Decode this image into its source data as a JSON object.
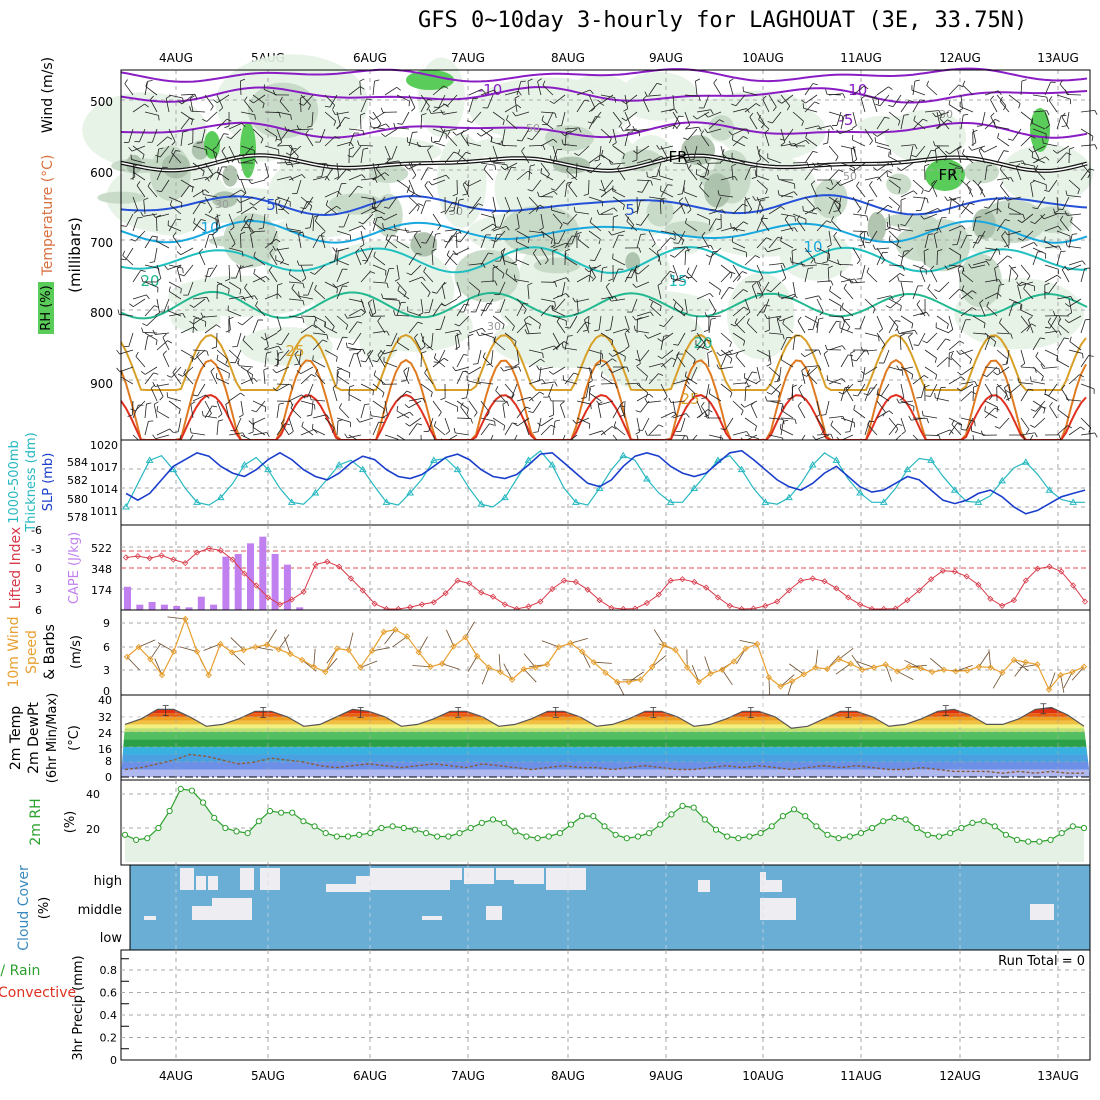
{
  "title": "GFS 0~10day 3-hourly for LAGHOUAT (3E, 33.75N)",
  "date_labels": [
    "4AUG",
    "5AUG",
    "6AUG",
    "7AUG",
    "8AUG",
    "9AUG",
    "10AUG",
    "11AUG",
    "12AUG",
    "13AUG"
  ],
  "colors": {
    "minus10": "#8a1cc4",
    "minus5": "#8a1cc4",
    "freezing": "#111111",
    "plus5": "#2550d8",
    "plus10": "#18a8e0",
    "plus15": "#20c0c0",
    "plus20": "#22b890",
    "plus25": "#d8a028",
    "plus30": "#e07a20",
    "plus35": "#e03020",
    "rh_light": "#e6f2e6",
    "rh_mid": "#c4d8c4",
    "rh_dark": "#a8bfa8",
    "rh_green": "#5acc5a",
    "thickness": "#26b8c0",
    "slp": "#1a3ecc",
    "lifted": "#d83a4a",
    "cape": "#c080f0",
    "wind_speed": "#e8a030",
    "barbs": "#6a4a2a",
    "rh2m": "#2ea02e",
    "cloud": "#6aaed6"
  },
  "panels": {
    "upper": {
      "label_rh": "RH (%)",
      "label_temp": "Temperature (°C)",
      "label_wind": "Wind (m/s)",
      "ylabel": "(millibars)",
      "yticks": [
        "500",
        "600",
        "700",
        "800",
        "900"
      ],
      "contour_labels": [
        "-10",
        "-10",
        "-5",
        "FR",
        "FR",
        "5",
        "5",
        "10",
        "10",
        "15",
        "20",
        "20",
        "25",
        "25",
        "30",
        "30",
        "30",
        "50",
        "50",
        "30"
      ]
    },
    "thick_slp": {
      "label_a": "1000-500mb",
      "label_b": "Thickness (dm)",
      "label_c": "SLP (mb)",
      "yticks_left": [
        "584",
        "582",
        "580",
        "578"
      ],
      "yticks_right": [
        "1020",
        "1017",
        "1014",
        "1011"
      ]
    },
    "cape_li": {
      "label_a": "Lifted Index",
      "label_b": "CAPE (J/kg)",
      "yticks_left": [
        "-6",
        "-3",
        "0",
        "3",
        "6"
      ],
      "yticks_right": [
        "522",
        "348",
        "174"
      ]
    },
    "wind10": {
      "label_a": "10m Wind",
      "label_b": "Speed",
      "label_c": "& Barbs",
      "unit": "(m/s)",
      "yticks": [
        "9",
        "6",
        "3",
        "0"
      ]
    },
    "temp2m": {
      "label_a": "2m Temp",
      "label_b": "2m DewPt",
      "label_c": "(6hr Min/Max)",
      "unit": "(°C)",
      "yticks": [
        "40",
        "32",
        "24",
        "16",
        "8",
        "0"
      ]
    },
    "rh2m": {
      "label": "2m RH",
      "unit": "(%)",
      "yticks": [
        "40",
        "20"
      ]
    },
    "cloud": {
      "label": "Cloud Cover",
      "unit": "(%)",
      "levels": [
        "high",
        "middle",
        "low"
      ]
    },
    "precip": {
      "label_a": "tal / Rain",
      "label_b": "Convective",
      "label_c": "3hr Precip (mm)",
      "yticks": [
        "0.8",
        "0.6",
        "0.4",
        "0.2",
        "0"
      ],
      "run_total": "Run Total = 0"
    }
  },
  "chart_data": {
    "type": "line",
    "x_label_dates": [
      "4AUG",
      "5AUG",
      "6AUG",
      "7AUG",
      "8AUG",
      "9AUG",
      "10AUG",
      "11AUG",
      "12AUG",
      "13AUG"
    ],
    "thickness_dm": [
      578,
      580.5,
      583,
      583.5,
      582,
      580,
      578.5,
      578.2,
      579,
      580.5,
      582.5,
      583.3,
      582,
      580,
      578.5,
      578.3,
      579.5,
      581,
      582.5,
      583,
      582,
      580.2,
      578.5,
      578.2,
      579.5,
      581,
      583,
      583.2,
      582,
      580,
      578.3,
      578,
      579,
      581,
      583,
      584,
      582.5,
      580,
      578.5,
      578.2,
      580,
      582,
      583.5,
      583,
      581,
      579.5,
      578.5,
      578.5,
      580,
      581.5,
      583,
      583.5,
      582,
      580,
      578.5,
      578.3,
      579,
      580.5,
      582.5,
      583.8,
      583,
      581,
      579.5,
      578.5,
      578.5,
      580,
      582,
      583.2,
      583,
      581.3,
      579.8,
      578.6,
      578.5,
      579.2,
      580.8,
      582.2,
      582.8,
      581.5,
      579.8,
      578.8,
      578.5,
      578.5
    ],
    "slp_mb": [
      1013,
      1012,
      1013,
      1015,
      1017,
      1018,
      1019,
      1018.5,
      1017,
      1016,
      1015.5,
      1016.5,
      1018,
      1019,
      1018,
      1016.5,
      1015.5,
      1015,
      1016,
      1017.5,
      1018.5,
      1018,
      1016.5,
      1015.5,
      1015.2,
      1015.8,
      1017,
      1018.3,
      1018.8,
      1018,
      1016.5,
      1015.5,
      1015.2,
      1015.8,
      1017.2,
      1018.8,
      1019,
      1017.5,
      1016,
      1014.5,
      1014,
      1015,
      1017,
      1018.5,
      1019,
      1018.5,
      1017,
      1016,
      1015.5,
      1016,
      1017.5,
      1019,
      1019.3,
      1018,
      1016.5,
      1015,
      1014,
      1013.5,
      1014.5,
      1016,
      1017,
      1015.5,
      1014,
      1013.2,
      1013.5,
      1014.5,
      1015.5,
      1015,
      1013.5,
      1012,
      1011.5,
      1012,
      1013,
      1013.5,
      1012.5,
      1011,
      1010,
      1010.5,
      1011.5,
      1012.5,
      1013,
      1013.5
    ],
    "lifted_index": [
      -1.5,
      -1.7,
      -1.4,
      -1.8,
      -1.2,
      -0.7,
      -2.2,
      -2.8,
      -2.5,
      -1.2,
      0.8,
      2.5,
      4.2,
      5.2,
      4.5,
      3.4,
      -0.5,
      -0.9,
      -0.2,
      1.5,
      3.2,
      5.1,
      6.2,
      6.0,
      5.6,
      5.2,
      4.9,
      3.6,
      1.8,
      2.2,
      3.5,
      4.1,
      5.2,
      6.0,
      5.5,
      4.8,
      3.0,
      1.8,
      2.0,
      3.1,
      4.6,
      5.7,
      6.1,
      5.8,
      5.0,
      3.8,
      1.8,
      1.6,
      2.0,
      2.8,
      4.2,
      5.4,
      6.0,
      5.8,
      5.4,
      4.8,
      3.2,
      1.8,
      1.5,
      1.9,
      2.9,
      4.2,
      5.2,
      5.9,
      6.2,
      5.8,
      4.6,
      3.2,
      1.6,
      0.4,
      0.5,
      1.2,
      2.4,
      4.4,
      5.4,
      4.6,
      1.8,
      0.1,
      -0.2,
      0.5,
      2.5,
      4.8
    ],
    "cape_jkg": [
      174,
      40,
      60,
      40,
      30,
      20,
      100,
      40,
      400,
      420,
      500,
      550,
      420,
      340,
      20,
      0,
      0,
      0,
      0,
      0,
      0,
      0,
      0,
      0,
      0
    ],
    "wind10_ms": [
      4.5,
      5.8,
      4.2,
      2.1,
      5.2,
      9.5,
      5.2,
      2.1,
      6.2,
      5.1,
      5.4,
      5.8,
      6.1,
      5.5,
      4.9,
      4.1,
      3.2,
      2.5,
      5.6,
      5.4,
      3.1,
      5.3,
      7.8,
      8.1,
      7.2,
      5.1,
      3.2,
      3.6,
      5.9,
      7.1,
      4.6,
      3.1,
      2.5,
      1.5,
      2.9,
      3.1,
      3.5,
      5.8,
      6.3,
      5.2,
      3.8,
      2.4,
      1.2,
      1.2,
      1.5,
      3.2,
      6.1,
      5.4,
      3.1,
      1.2,
      2.3,
      2.8,
      3.9,
      5.6,
      6.2,
      1.8,
      0.6,
      1.3,
      2.2,
      3.1,
      2.9,
      4.2,
      3.6,
      2.8,
      3.1,
      3.5,
      2.6,
      3.2,
      3.0,
      2.5,
      2.8,
      2.6,
      2.7,
      3.2,
      3.1,
      2.4,
      4.1,
      3.8,
      3.5,
      0.2,
      2.1,
      2.5,
      3.2
    ],
    "temp2m_c": [
      28,
      31,
      36,
      36,
      32,
      27,
      28,
      31,
      35,
      35,
      32,
      27,
      28,
      32,
      36,
      35,
      32,
      27,
      28,
      31,
      35,
      35,
      32,
      27,
      28,
      31,
      35,
      35,
      32,
      27,
      28,
      31,
      35,
      35,
      32,
      27,
      28,
      31,
      35,
      35,
      32,
      26,
      27,
      31,
      35,
      35,
      32,
      27,
      28,
      31,
      35,
      36,
      33,
      28,
      28,
      31,
      36,
      37,
      33,
      27
    ],
    "dewpoint2m_c": [
      4,
      5,
      7,
      9,
      12,
      11,
      9,
      7,
      8,
      10,
      9,
      8,
      6,
      5,
      6,
      7,
      6,
      5,
      6,
      7,
      6,
      5,
      7,
      6,
      5,
      4,
      5,
      6,
      5,
      5,
      4,
      5,
      6,
      5,
      4,
      4,
      5,
      6,
      5,
      6,
      5,
      4,
      5,
      6,
      5,
      6,
      5,
      4,
      4,
      5,
      4,
      3,
      3,
      3,
      2,
      3,
      2,
      3,
      2,
      2
    ],
    "rh2m_pct": [
      16,
      13,
      14,
      20,
      30,
      43,
      42,
      35,
      26,
      20,
      18,
      17,
      24,
      30,
      29,
      29,
      24,
      21,
      17,
      15,
      15,
      16,
      17,
      20,
      21,
      20,
      19,
      17,
      15,
      15,
      17,
      20,
      23,
      25,
      23,
      18,
      15,
      14,
      15,
      17,
      22,
      27,
      27,
      21,
      16,
      14,
      15,
      17,
      22,
      28,
      33,
      32,
      25,
      19,
      15,
      14,
      15,
      17,
      21,
      27,
      31,
      27,
      21,
      16,
      14,
      15,
      17,
      20,
      24,
      26,
      25,
      20,
      16,
      15,
      17,
      20,
      23,
      24,
      21,
      16,
      13,
      12,
      12,
      13,
      17,
      21,
      20
    ]
  }
}
